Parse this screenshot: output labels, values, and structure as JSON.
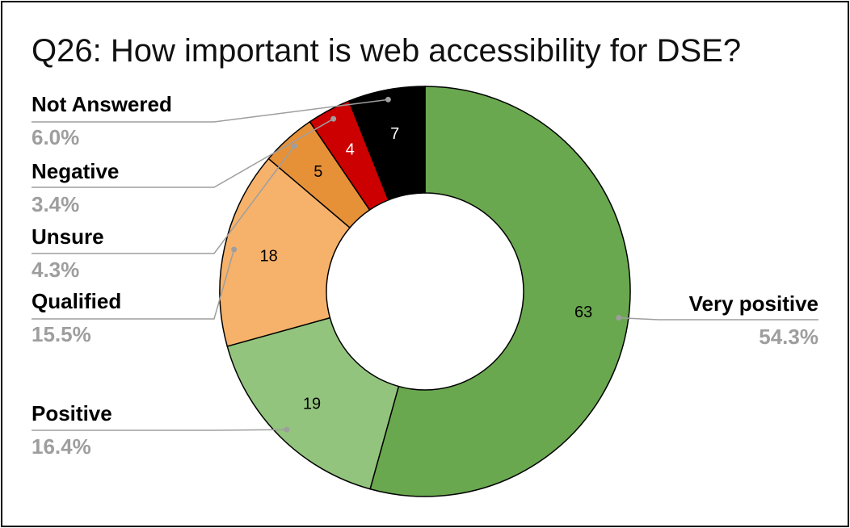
{
  "chart_data": {
    "type": "pie",
    "title": "Q26: How important is web accessibility for DSE?",
    "categories": [
      "Very positive",
      "Positive",
      "Qualified",
      "Unsure",
      "Negative",
      "Not Answered"
    ],
    "values": [
      63,
      19,
      18,
      5,
      4,
      7
    ],
    "percent_labels": [
      "54.3%",
      "16.4%",
      "15.5%",
      "4.3%",
      "3.4%",
      "6.0%"
    ],
    "colors": [
      "#6aa84f",
      "#93c47d",
      "#f6b26b",
      "#e69138",
      "#cc0000",
      "#000000"
    ],
    "value_label_colors": [
      "#000000",
      "#000000",
      "#000000",
      "#000000",
      "#ffffff",
      "#ffffff"
    ],
    "donut": true,
    "legend": "callout-labels"
  }
}
